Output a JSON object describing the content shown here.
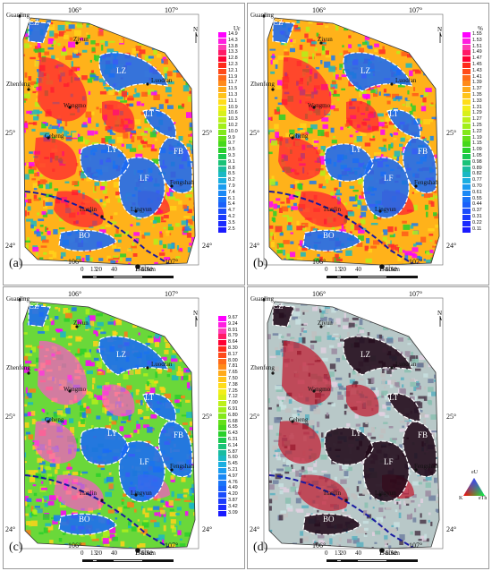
{
  "panels": [
    {
      "label": "(a)",
      "legend": {
        "unit": "Ur",
        "values": [
          "14.9",
          "14.3",
          "13.8",
          "13.3",
          "12.8",
          "12.3",
          "12.1",
          "11.9",
          "11.7",
          "11.5",
          "11.3",
          "11.1",
          "10.9",
          "10.6",
          "10.3",
          "10.2",
          "10.0",
          "9.9",
          "9.7",
          "9.5",
          "9.3",
          "9.1",
          "8.8",
          "8.5",
          "8.2",
          "7.9",
          "7.4",
          "6.1",
          "5.4",
          "4.7",
          "4.2",
          "3.5",
          "2.5"
        ]
      }
    },
    {
      "label": "(b)",
      "legend": {
        "unit": "%",
        "values": [
          "1.55",
          "1.53",
          "1.51",
          "1.49",
          "1.47",
          "1.45",
          "1.43",
          "1.41",
          "1.39",
          "1.37",
          "1.35",
          "1.33",
          "1.31",
          "1.29",
          "1.27",
          "1.25",
          "1.22",
          "1.19",
          "1.15",
          "1.09",
          "1.05",
          "0.98",
          "0.89",
          "0.82",
          "0.77",
          "0.70",
          "0.61",
          "0.55",
          "0.44",
          "0.37",
          "0.31",
          "0.22",
          "0.11"
        ]
      }
    },
    {
      "label": "(c)",
      "legend": {
        "unit": "",
        "values": [
          "9.67",
          "9.24",
          "8.91",
          "8.79",
          "8.64",
          "8.30",
          "8.17",
          "8.00",
          "7.81",
          "7.65",
          "7.50",
          "7.38",
          "7.25",
          "7.12",
          "7.00",
          "6.91",
          "6.80",
          "6.68",
          "6.55",
          "6.43",
          "6.31",
          "6.14",
          "5.87",
          "5.60",
          "5.45",
          "5.21",
          "4.97",
          "4.76",
          "4.49",
          "4.20",
          "3.87",
          "3.42",
          "3.09"
        ]
      }
    },
    {
      "label": "(d)",
      "legend": null
    }
  ],
  "coords": {
    "lon1": "106°",
    "lon2": "107°",
    "lat1": "25°",
    "lat2": "24°"
  },
  "scalebar": {
    "labels": [
      "0",
      "13",
      "20",
      "40",
      "60km"
    ]
  },
  "places": {
    "guanling": "Guanling",
    "ziyun": "Ziyun",
    "zhenfeng": "Zhenfeng",
    "luodian": "Luodian",
    "wangmo": "Wangmo",
    "ceheng": "Ceheng",
    "tianlin": "Tianlin",
    "lingyun": "Lingyun",
    "fengshan": "Fengshan",
    "baise": "Baise"
  },
  "zones": {
    "cz": "CZ",
    "lz": "LZ",
    "lt": "LT",
    "ly": "LY",
    "fb": "FB",
    "lf": "LF",
    "bo": "BO"
  },
  "ternary": {
    "top": "eU",
    "left": "K",
    "right": "eTh"
  },
  "colors": {
    "legend": [
      "#ff00ff",
      "#ff1ee0",
      "#ff3cb4",
      "#ff1a66",
      "#ff0033",
      "#ff2a1a",
      "#ff4a1a",
      "#ff6a1a",
      "#ff8a1a",
      "#ffaa1a",
      "#ffc41a",
      "#ffdd1a",
      "#f2ee1a",
      "#d8f01a",
      "#bdf01a",
      "#a0ef1a",
      "#82e81a",
      "#64e01a",
      "#46d81a",
      "#28d02a",
      "#1ac850",
      "#1ac278",
      "#1abca0",
      "#1ab8c4",
      "#1aaee0",
      "#1a9cf0",
      "#1a88f5",
      "#1a74f8",
      "#1a60fa",
      "#1a4cfc",
      "#1a3afd",
      "#1a2afe",
      "#1a1aff"
    ]
  }
}
